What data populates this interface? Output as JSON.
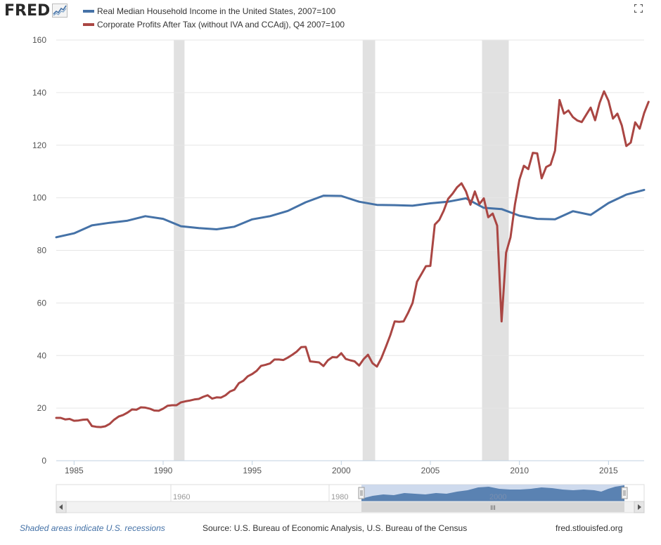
{
  "brand": {
    "logo_text": "FRED"
  },
  "legend": [
    {
      "label": "Real Median Household Income in the United States, 2007=100",
      "color": "#4572a7"
    },
    {
      "label": "Corporate Profits After Tax (without IVA and CCAdj), Q4 2007=100",
      "color": "#aa4643"
    }
  ],
  "footer": {
    "note": "Shaded areas indicate U.S. recessions",
    "source": "Source: U.S. Bureau of Economic Analysis, U.S. Bureau of the Census",
    "site": "fred.stlouisfed.org"
  },
  "navigator": {
    "tick_labels": [
      "1960",
      "1980",
      "2000"
    ],
    "scroll_grip": "III"
  },
  "chart_data": {
    "type": "line",
    "title": "",
    "xlabel": "",
    "ylabel": "",
    "xlim": [
      1984.0,
      2017.0
    ],
    "ylim": [
      0,
      160
    ],
    "yticks": [
      0,
      20,
      40,
      60,
      80,
      100,
      120,
      140,
      160
    ],
    "xticks": [
      1985,
      1990,
      1995,
      2000,
      2005,
      2010,
      2015
    ],
    "grid": "horizontal",
    "recessions": [
      [
        1990.6,
        1991.2
      ],
      [
        2001.2,
        2001.9
      ],
      [
        2007.9,
        2009.4
      ]
    ],
    "series": [
      {
        "name": "Real Median Household Income in the United States, 2007=100",
        "color": "#4572a7",
        "points": [
          [
            1984.0,
            85.0
          ],
          [
            1985.0,
            86.5
          ],
          [
            1986.0,
            89.5
          ],
          [
            1987.0,
            90.5
          ],
          [
            1988.0,
            91.3
          ],
          [
            1989.0,
            93.0
          ],
          [
            1990.0,
            92.0
          ],
          [
            1991.0,
            89.2
          ],
          [
            1992.0,
            88.5
          ],
          [
            1993.0,
            88.0
          ],
          [
            1994.0,
            89.0
          ],
          [
            1995.0,
            91.8
          ],
          [
            1996.0,
            93.0
          ],
          [
            1997.0,
            95.0
          ],
          [
            1998.0,
            98.3
          ],
          [
            1999.0,
            100.8
          ],
          [
            2000.0,
            100.7
          ],
          [
            2001.0,
            98.5
          ],
          [
            2002.0,
            97.3
          ],
          [
            2003.0,
            97.2
          ],
          [
            2004.0,
            97.0
          ],
          [
            2005.0,
            97.9
          ],
          [
            2006.0,
            98.5
          ],
          [
            2007.0,
            99.8
          ],
          [
            2008.0,
            96.2
          ],
          [
            2009.0,
            95.7
          ],
          [
            2010.0,
            93.2
          ],
          [
            2011.0,
            92.0
          ],
          [
            2012.0,
            91.8
          ],
          [
            2013.0,
            94.9
          ],
          [
            2014.0,
            93.5
          ],
          [
            2015.0,
            98.0
          ],
          [
            2016.0,
            101.2
          ],
          [
            2017.0,
            103.0
          ]
        ]
      },
      {
        "name": "Corporate Profits After Tax (without IVA and CCAdj), Q4 2007=100",
        "color": "#aa4643",
        "points": [
          [
            1984.0,
            16.3
          ],
          [
            1984.25,
            16.3
          ],
          [
            1984.5,
            15.7
          ],
          [
            1984.75,
            15.9
          ],
          [
            1985.0,
            15.2
          ],
          [
            1985.25,
            15.3
          ],
          [
            1985.5,
            15.6
          ],
          [
            1985.75,
            15.7
          ],
          [
            1986.0,
            13.2
          ],
          [
            1986.25,
            12.9
          ],
          [
            1986.5,
            12.8
          ],
          [
            1986.75,
            13.1
          ],
          [
            1987.0,
            14.0
          ],
          [
            1987.25,
            15.6
          ],
          [
            1987.5,
            16.8
          ],
          [
            1987.75,
            17.4
          ],
          [
            1988.0,
            18.3
          ],
          [
            1988.25,
            19.5
          ],
          [
            1988.5,
            19.4
          ],
          [
            1988.75,
            20.3
          ],
          [
            1989.0,
            20.2
          ],
          [
            1989.25,
            19.8
          ],
          [
            1989.5,
            19.1
          ],
          [
            1989.75,
            19.0
          ],
          [
            1990.0,
            19.8
          ],
          [
            1990.25,
            20.9
          ],
          [
            1990.5,
            21.1
          ],
          [
            1990.75,
            21.1
          ],
          [
            1991.0,
            22.2
          ],
          [
            1991.25,
            22.6
          ],
          [
            1991.5,
            22.9
          ],
          [
            1991.75,
            23.3
          ],
          [
            1992.0,
            23.5
          ],
          [
            1992.25,
            24.3
          ],
          [
            1992.5,
            24.9
          ],
          [
            1992.75,
            23.6
          ],
          [
            1993.0,
            24.1
          ],
          [
            1993.25,
            24.0
          ],
          [
            1993.5,
            24.9
          ],
          [
            1993.75,
            26.3
          ],
          [
            1994.0,
            27.0
          ],
          [
            1994.25,
            29.5
          ],
          [
            1994.5,
            30.4
          ],
          [
            1994.75,
            32.1
          ],
          [
            1995.0,
            33.0
          ],
          [
            1995.25,
            34.2
          ],
          [
            1995.5,
            36.1
          ],
          [
            1995.75,
            36.5
          ],
          [
            1996.0,
            37.0
          ],
          [
            1996.25,
            38.5
          ],
          [
            1996.5,
            38.5
          ],
          [
            1996.75,
            38.3
          ],
          [
            1997.0,
            39.2
          ],
          [
            1997.25,
            40.3
          ],
          [
            1997.5,
            41.5
          ],
          [
            1997.75,
            43.2
          ],
          [
            1998.0,
            43.3
          ],
          [
            1998.25,
            37.8
          ],
          [
            1998.5,
            37.6
          ],
          [
            1998.75,
            37.4
          ],
          [
            1999.0,
            36.0
          ],
          [
            1999.25,
            38.2
          ],
          [
            1999.5,
            39.4
          ],
          [
            1999.75,
            39.3
          ],
          [
            2000.0,
            40.9
          ],
          [
            2000.25,
            38.7
          ],
          [
            2000.5,
            38.2
          ],
          [
            2000.75,
            37.8
          ],
          [
            2001.0,
            36.2
          ],
          [
            2001.25,
            38.6
          ],
          [
            2001.5,
            40.3
          ],
          [
            2001.75,
            37.1
          ],
          [
            2002.0,
            35.8
          ],
          [
            2002.25,
            39.0
          ],
          [
            2002.5,
            43.3
          ],
          [
            2002.75,
            47.7
          ],
          [
            2003.0,
            53.0
          ],
          [
            2003.25,
            52.8
          ],
          [
            2003.5,
            53.0
          ],
          [
            2003.75,
            56.2
          ],
          [
            2004.0,
            60.0
          ],
          [
            2004.25,
            68.1
          ],
          [
            2004.5,
            71.0
          ],
          [
            2004.75,
            74.0
          ],
          [
            2005.0,
            74.1
          ],
          [
            2005.25,
            89.8
          ],
          [
            2005.5,
            91.6
          ],
          [
            2005.75,
            95.1
          ],
          [
            2006.0,
            99.6
          ],
          [
            2006.25,
            101.6
          ],
          [
            2006.5,
            104.0
          ],
          [
            2006.75,
            105.5
          ],
          [
            2007.0,
            102.4
          ],
          [
            2007.25,
            97.4
          ],
          [
            2007.5,
            102.4
          ],
          [
            2007.75,
            97.6
          ],
          [
            2008.0,
            99.8
          ],
          [
            2008.25,
            92.6
          ],
          [
            2008.5,
            94.0
          ],
          [
            2008.75,
            89.4
          ],
          [
            2009.0,
            53.0
          ],
          [
            2009.25,
            79.1
          ],
          [
            2009.5,
            85.0
          ],
          [
            2009.75,
            97.5
          ],
          [
            2010.0,
            106.9
          ],
          [
            2010.25,
            112.2
          ],
          [
            2010.5,
            110.9
          ],
          [
            2010.75,
            117.1
          ],
          [
            2011.0,
            116.9
          ],
          [
            2011.25,
            107.4
          ],
          [
            2011.5,
            111.7
          ],
          [
            2011.75,
            112.6
          ],
          [
            2012.0,
            117.9
          ],
          [
            2012.25,
            137.2
          ],
          [
            2012.5,
            132.0
          ],
          [
            2012.75,
            133.2
          ],
          [
            2013.0,
            130.7
          ],
          [
            2013.25,
            129.4
          ],
          [
            2013.5,
            128.8
          ],
          [
            2013.75,
            131.6
          ],
          [
            2014.0,
            134.3
          ],
          [
            2014.25,
            129.5
          ],
          [
            2014.5,
            136.1
          ],
          [
            2014.75,
            140.5
          ],
          [
            2015.0,
            136.9
          ],
          [
            2015.25,
            130.1
          ],
          [
            2015.5,
            132.0
          ],
          [
            2015.75,
            127.5
          ],
          [
            2016.0,
            119.7
          ],
          [
            2016.25,
            121.0
          ],
          [
            2016.5,
            128.7
          ],
          [
            2016.75,
            126.3
          ],
          [
            2017.0,
            132.2
          ],
          [
            2017.25,
            136.5
          ]
        ]
      }
    ]
  }
}
